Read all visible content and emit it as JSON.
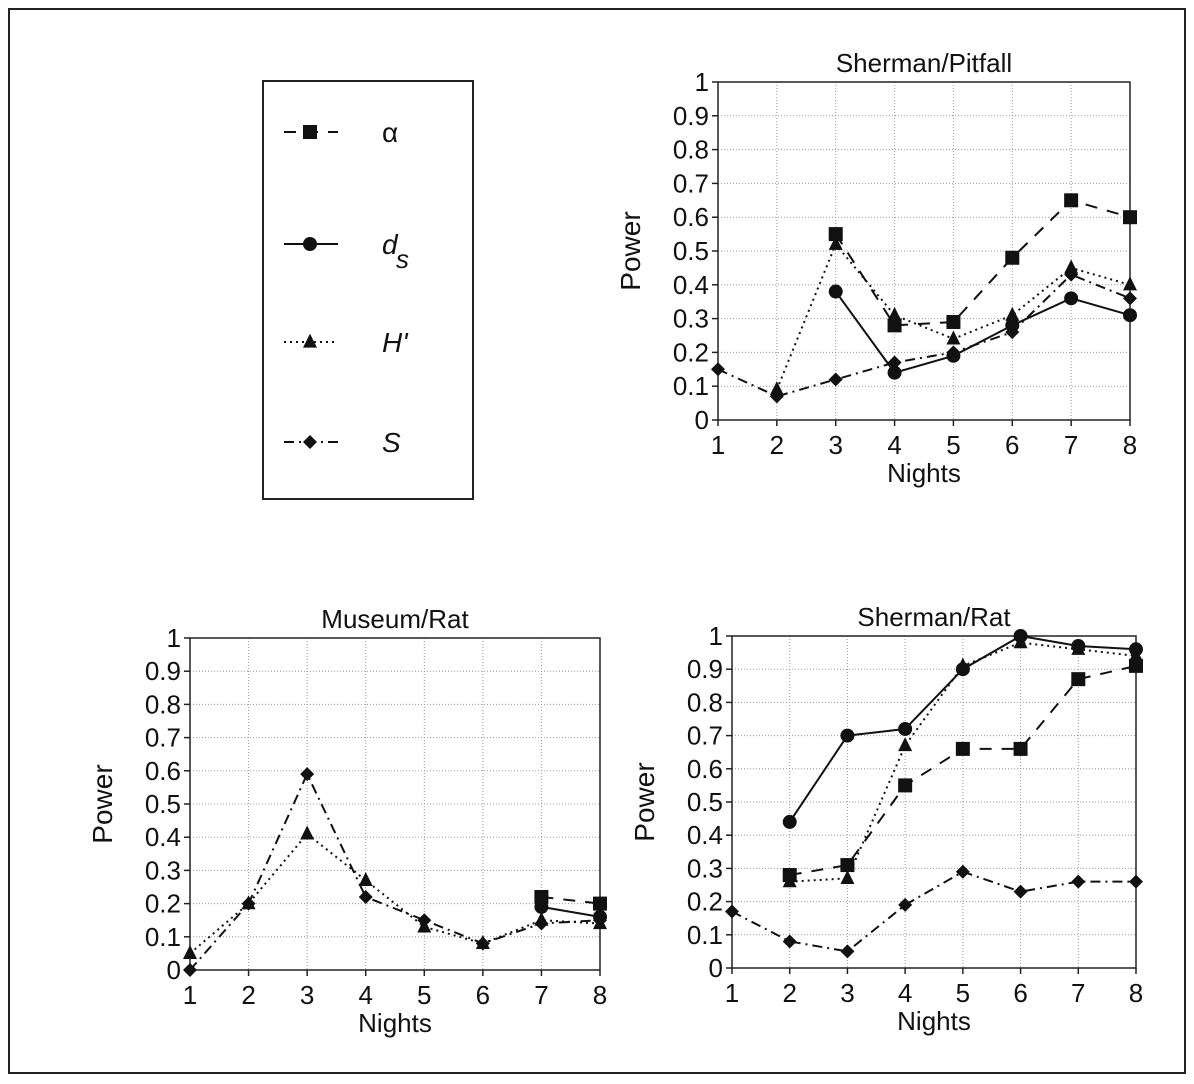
{
  "legend": {
    "items": [
      {
        "key": "alpha",
        "symbol": "square",
        "dash": "dashed",
        "label": "α"
      },
      {
        "key": "ds",
        "symbol": "circle",
        "dash": "solid",
        "label": "d",
        "sub": "s"
      },
      {
        "key": "H",
        "symbol": "triangle",
        "dash": "dotted",
        "label": "H'"
      },
      {
        "key": "S",
        "symbol": "diamond",
        "dash": "dashdot",
        "label": "S"
      }
    ]
  },
  "chart_data": [
    {
      "id": "sherman-pitfall",
      "type": "line",
      "title": "Sherman/Pitfall",
      "xlabel": "Nights",
      "ylabel": "Power",
      "x": [
        1,
        2,
        3,
        4,
        5,
        6,
        7,
        8
      ],
      "xlim": [
        1,
        8
      ],
      "ylim": [
        0,
        1
      ],
      "yticks": [
        0,
        0.1,
        0.2,
        0.3,
        0.4,
        0.5,
        0.6,
        0.7,
        0.8,
        0.9,
        1
      ],
      "ytick_labels": [
        "0",
        "0.1",
        "0.2",
        "0.3",
        "0.4",
        "0.5",
        "0.6",
        "0.7",
        "0.8",
        "0.9",
        "1"
      ],
      "grid": true,
      "series": [
        {
          "key": "alpha",
          "values": [
            null,
            null,
            0.55,
            0.28,
            0.29,
            0.48,
            0.65,
            0.6
          ]
        },
        {
          "key": "ds",
          "values": [
            null,
            null,
            0.38,
            0.14,
            0.19,
            0.28,
            0.36,
            0.31
          ]
        },
        {
          "key": "H",
          "values": [
            null,
            0.09,
            0.52,
            0.31,
            0.24,
            0.31,
            0.45,
            0.4
          ]
        },
        {
          "key": "S",
          "values": [
            0.15,
            0.07,
            0.12,
            0.17,
            0.2,
            0.26,
            0.43,
            0.36
          ]
        }
      ]
    },
    {
      "id": "museum-rat",
      "type": "line",
      "title": "Museum/Rat",
      "xlabel": "Nights",
      "ylabel": "Power",
      "x": [
        1,
        2,
        3,
        4,
        5,
        6,
        7,
        8
      ],
      "xlim": [
        1,
        8
      ],
      "ylim": [
        0,
        1
      ],
      "yticks": [
        0,
        0.1,
        0.2,
        0.3,
        0.4,
        0.5,
        0.6,
        0.7,
        0.8,
        0.9,
        1
      ],
      "ytick_labels": [
        "0",
        "0.1",
        "0.2",
        "0.3",
        "0.4",
        "0.5",
        "0.6",
        "0.7",
        "0.8",
        "0.9",
        "1"
      ],
      "grid": true,
      "series": [
        {
          "key": "alpha",
          "values": [
            null,
            null,
            null,
            null,
            null,
            null,
            0.22,
            0.2
          ]
        },
        {
          "key": "ds",
          "values": [
            null,
            null,
            null,
            null,
            null,
            null,
            0.19,
            0.16
          ]
        },
        {
          "key": "H",
          "values": [
            0.05,
            0.2,
            0.41,
            0.27,
            0.13,
            0.08,
            0.15,
            0.14
          ]
        },
        {
          "key": "S",
          "values": [
            0.0,
            0.2,
            0.59,
            0.22,
            0.15,
            0.08,
            0.14,
            0.15
          ]
        }
      ]
    },
    {
      "id": "sherman-rat",
      "type": "line",
      "title": "Sherman/Rat",
      "xlabel": "Nights",
      "ylabel": "Power",
      "x": [
        1,
        2,
        3,
        4,
        5,
        6,
        7,
        8
      ],
      "xlim": [
        1,
        8
      ],
      "ylim": [
        0,
        1
      ],
      "yticks": [
        0,
        0.1,
        0.2,
        0.3,
        0.4,
        0.5,
        0.6,
        0.7,
        0.8,
        0.9,
        1
      ],
      "ytick_labels": [
        "0",
        "0.1",
        "0.2",
        "0.3",
        "0.4",
        "0.5",
        "0.6",
        "0.7",
        "0.8",
        "0.9",
        "1"
      ],
      "grid": true,
      "series": [
        {
          "key": "alpha",
          "values": [
            null,
            0.28,
            0.31,
            0.55,
            0.66,
            0.66,
            0.87,
            0.91
          ]
        },
        {
          "key": "ds",
          "values": [
            null,
            0.44,
            0.7,
            0.72,
            0.9,
            1.0,
            0.97,
            0.96
          ]
        },
        {
          "key": "H",
          "values": [
            null,
            0.26,
            0.27,
            0.67,
            0.91,
            0.98,
            0.96,
            0.94
          ]
        },
        {
          "key": "S",
          "values": [
            0.17,
            0.08,
            0.05,
            0.19,
            0.29,
            0.23,
            0.26,
            0.26
          ]
        }
      ]
    }
  ]
}
